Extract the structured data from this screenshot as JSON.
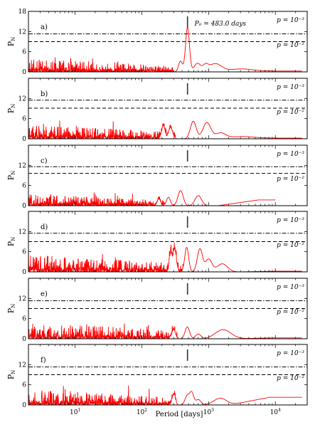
{
  "chart_data": {
    "type": "line",
    "xlabel": "Period [days]",
    "xscale": "log",
    "xlim": [
      2,
      30000
    ],
    "x_ticks": [
      {
        "value": 10,
        "label": "10",
        "exp": "1"
      },
      {
        "value": 100,
        "label": "10",
        "exp": "2"
      },
      {
        "value": 1000,
        "label": "10",
        "exp": "3"
      },
      {
        "value": 10000,
        "label": "10",
        "exp": "4"
      }
    ],
    "ylabel": {
      "main": "P",
      "sub": "N"
    },
    "ylim": [
      0,
      18
    ],
    "p0_label": "P₀ = 483.0 days",
    "p0_period": 483.0,
    "series_color": "#ff0000",
    "panels": [
      {
        "label": "a)",
        "y_ticks": [
          "0",
          "6",
          "12",
          "18"
        ],
        "y_tick_values": [
          0,
          6,
          12,
          18
        ],
        "show_top_tick": true,
        "show_p0_label": true,
        "threshold_1e3": 11.3,
        "threshold_1e2": 9.0,
        "threshold_1e3_label": "p = 10⁻³",
        "threshold_1e2_label": "p = 10⁻²",
        "noise_level": 3.4,
        "noise_end": 300,
        "x_end": 25000,
        "peaks": [
          {
            "x": 483,
            "y": 13.2,
            "w": 0.03
          },
          {
            "x": 380,
            "y": 3.2,
            "w": 0.03
          },
          {
            "x": 680,
            "y": 2.5,
            "w": 0.05
          },
          {
            "x": 1250,
            "y": 2.4,
            "w": 0.1
          },
          {
            "x": 900,
            "y": 1.6,
            "w": 0.04
          },
          {
            "x": 3000,
            "y": 0.8,
            "w": 0.18
          }
        ],
        "tail": 0.25
      },
      {
        "label": "b)",
        "y_ticks": [
          "0",
          "6",
          "12"
        ],
        "y_tick_values": [
          0,
          6,
          12
        ],
        "show_top_tick": false,
        "show_p0_label": false,
        "threshold_1e3": 11.5,
        "threshold_1e2": 9.1,
        "threshold_1e3_label": "p = 10⁻³",
        "threshold_1e2_label": "p = 10⁻²",
        "noise_level": 3.6,
        "noise_end": 320,
        "x_end": 25000,
        "peaks": [
          {
            "x": 590,
            "y": 5.2,
            "w": 0.045
          },
          {
            "x": 940,
            "y": 4.8,
            "w": 0.06
          },
          {
            "x": 1500,
            "y": 1.6,
            "w": 0.08
          },
          {
            "x": 270,
            "y": 3.2,
            "w": 0.03
          },
          {
            "x": 210,
            "y": 3.8,
            "w": 0.025
          },
          {
            "x": 3000,
            "y": 0.6,
            "w": 0.2
          }
        ],
        "tail": 0.2
      },
      {
        "label": "c)",
        "y_ticks": [
          "0",
          "6",
          "12"
        ],
        "y_tick_values": [
          0,
          6,
          12
        ],
        "show_top_tick": false,
        "show_p0_label": false,
        "threshold_1e3": 11.6,
        "threshold_1e2": 9.6,
        "threshold_1e3_label": "p = 10⁻³",
        "threshold_1e2_label": "p = 10⁻²",
        "noise_level": 3.0,
        "noise_end": 220,
        "x_end": 10000,
        "peaks": [
          {
            "x": 380,
            "y": 4.5,
            "w": 0.04
          },
          {
            "x": 700,
            "y": 3.0,
            "w": 0.05
          },
          {
            "x": 250,
            "y": 2.5,
            "w": 0.03
          },
          {
            "x": 180,
            "y": 2.0,
            "w": 0.025
          }
        ],
        "tail": 1.7
      },
      {
        "label": "d)",
        "y_ticks": [
          "0",
          "6",
          "12"
        ],
        "y_tick_values": [
          0,
          6,
          12
        ],
        "show_top_tick": false,
        "show_p0_label": false,
        "threshold_1e3": 11.5,
        "threshold_1e2": 9.0,
        "threshold_1e3_label": "p = 10⁻³",
        "threshold_1e2_label": "p = 10⁻²",
        "noise_level": 4.5,
        "noise_end": 420,
        "x_end": 25000,
        "peaks": [
          {
            "x": 470,
            "y": 7.3,
            "w": 0.03
          },
          {
            "x": 740,
            "y": 6.8,
            "w": 0.04
          },
          {
            "x": 1000,
            "y": 3.8,
            "w": 0.05
          },
          {
            "x": 1600,
            "y": 2.4,
            "w": 0.08
          },
          {
            "x": 310,
            "y": 6.6,
            "w": 0.025
          },
          {
            "x": 270,
            "y": 5.5,
            "w": 0.02
          }
        ],
        "tail": 0.2
      },
      {
        "label": "e)",
        "y_ticks": [
          "0",
          "6",
          "12"
        ],
        "y_tick_values": [
          0,
          6,
          12
        ],
        "show_top_tick": false,
        "show_p0_label": false,
        "threshold_1e3": 11.3,
        "threshold_1e2": 9.0,
        "threshold_1e3_label": "p = 10⁻³",
        "threshold_1e2_label": "p = 10⁻²",
        "noise_level": 4.2,
        "noise_end": 350,
        "x_end": 25000,
        "peaks": [
          {
            "x": 480,
            "y": 3.5,
            "w": 0.035
          },
          {
            "x": 300,
            "y": 2.8,
            "w": 0.025
          },
          {
            "x": 700,
            "y": 1.4,
            "w": 0.04
          },
          {
            "x": 1650,
            "y": 2.7,
            "w": 0.12
          }
        ],
        "tail": 0.25
      },
      {
        "label": "f)",
        "y_ticks": [
          "0",
          "6",
          "12"
        ],
        "y_tick_values": [
          0,
          6,
          12
        ],
        "show_top_tick": false,
        "show_p0_label": false,
        "threshold_1e3": 11.3,
        "threshold_1e2": 9.0,
        "threshold_1e3_label": "p = 10⁻³",
        "threshold_1e2_label": "p = 10⁻²",
        "noise_level": 4.0,
        "noise_end": 330,
        "x_end": 25000,
        "peaks": [
          {
            "x": 480,
            "y": 2.8,
            "w": 0.035
          },
          {
            "x": 560,
            "y": 3.5,
            "w": 0.03
          },
          {
            "x": 300,
            "y": 3.1,
            "w": 0.025
          },
          {
            "x": 700,
            "y": 1.6,
            "w": 0.04
          },
          {
            "x": 1500,
            "y": 2.0,
            "w": 0.1
          }
        ],
        "tail": 2.3
      }
    ]
  }
}
